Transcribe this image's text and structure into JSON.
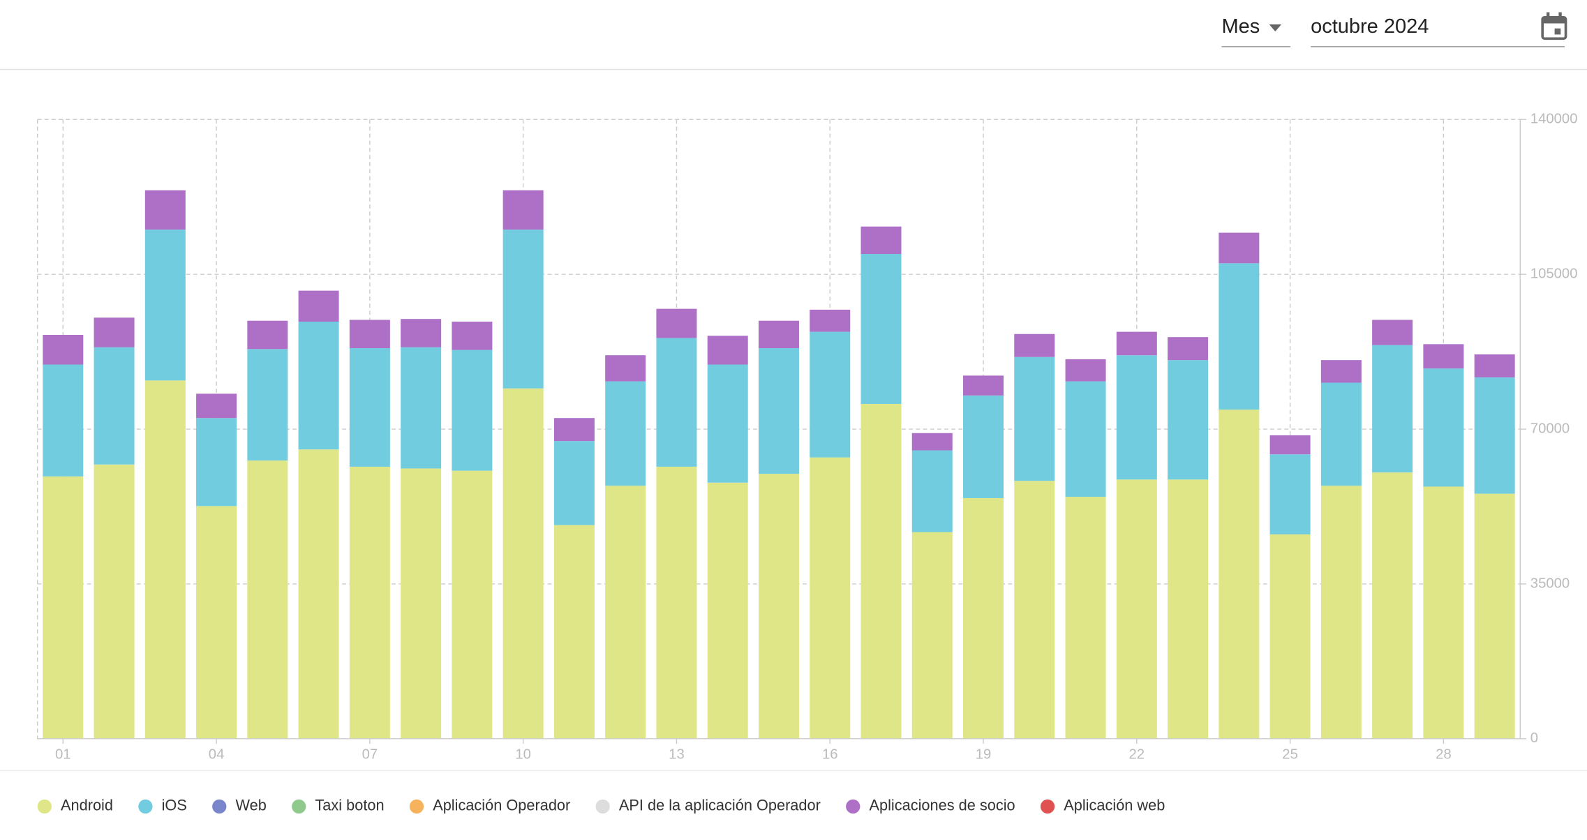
{
  "header": {
    "period": "Mes",
    "date": "octubre 2024"
  },
  "chart_data": {
    "type": "bar",
    "stacked": true,
    "grid": true,
    "categories": [
      "01",
      null,
      null,
      "04",
      null,
      null,
      "07",
      null,
      null,
      "10",
      null,
      null,
      "13",
      null,
      null,
      "16",
      null,
      null,
      "19",
      null,
      null,
      "22",
      null,
      null,
      "25",
      null,
      null,
      "28",
      null
    ],
    "ylim": [
      0,
      140000
    ],
    "yticks": [
      0,
      35000,
      70000,
      105000,
      140000
    ],
    "series": [
      {
        "name": "Android",
        "color": "#dfe687",
        "values": [
          59300,
          62000,
          81000,
          52600,
          62900,
          65400,
          61500,
          61100,
          60600,
          79200,
          48300,
          57200,
          61500,
          57900,
          59900,
          63600,
          75700,
          46700,
          54400,
          58300,
          54700,
          58600,
          58600,
          74400,
          46200,
          57200,
          60200,
          57000,
          55400
        ]
      },
      {
        "name": "iOS",
        "color": "#72cce0",
        "values": [
          25300,
          26500,
          34100,
          19900,
          25200,
          28900,
          26800,
          27400,
          27300,
          35900,
          19000,
          23600,
          29100,
          26700,
          28400,
          28400,
          33900,
          18500,
          23200,
          28000,
          26100,
          28100,
          27000,
          33100,
          18100,
          23300,
          28800,
          26700,
          26300
        ]
      },
      {
        "name": "Web",
        "color": "#7986cb",
        "values": [
          0,
          0,
          0,
          0,
          0,
          0,
          0,
          0,
          0,
          0,
          0,
          0,
          0,
          0,
          0,
          0,
          0,
          0,
          0,
          0,
          0,
          0,
          0,
          0,
          0,
          0,
          0,
          0,
          0
        ]
      },
      {
        "name": "Taxi boton",
        "color": "#8fc98c",
        "values": [
          0,
          0,
          0,
          0,
          0,
          0,
          0,
          0,
          0,
          0,
          0,
          0,
          0,
          0,
          0,
          0,
          0,
          0,
          0,
          0,
          0,
          0,
          0,
          0,
          0,
          0,
          0,
          0,
          0
        ]
      },
      {
        "name": "Aplicación Operador",
        "color": "#f6b35c",
        "values": [
          0,
          0,
          0,
          0,
          0,
          0,
          0,
          0,
          0,
          0,
          0,
          0,
          0,
          0,
          0,
          0,
          0,
          0,
          0,
          0,
          0,
          0,
          0,
          0,
          0,
          0,
          0,
          0,
          0
        ]
      },
      {
        "name": "API de la aplicación Operador",
        "color": "#dddddd",
        "values": [
          0,
          0,
          0,
          0,
          0,
          0,
          0,
          0,
          0,
          0,
          0,
          0,
          0,
          0,
          0,
          0,
          0,
          0,
          0,
          0,
          0,
          0,
          0,
          0,
          0,
          0,
          0,
          0,
          0
        ]
      },
      {
        "name": "Aplicaciones de socio",
        "color": "#ae6fc6",
        "values": [
          6700,
          6700,
          8900,
          5500,
          6400,
          7000,
          6400,
          6400,
          6400,
          8900,
          5200,
          5900,
          6600,
          6500,
          6200,
          5000,
          6200,
          3900,
          4500,
          5200,
          5000,
          5300,
          5200,
          6900,
          4300,
          5100,
          5700,
          5500,
          5200
        ]
      },
      {
        "name": "Aplicación web",
        "color": "#e05252",
        "values": [
          0,
          0,
          0,
          0,
          0,
          0,
          0,
          0,
          0,
          0,
          0,
          0,
          0,
          0,
          0,
          0,
          0,
          0,
          0,
          0,
          0,
          0,
          0,
          0,
          0,
          0,
          0,
          0,
          0
        ]
      }
    ]
  }
}
